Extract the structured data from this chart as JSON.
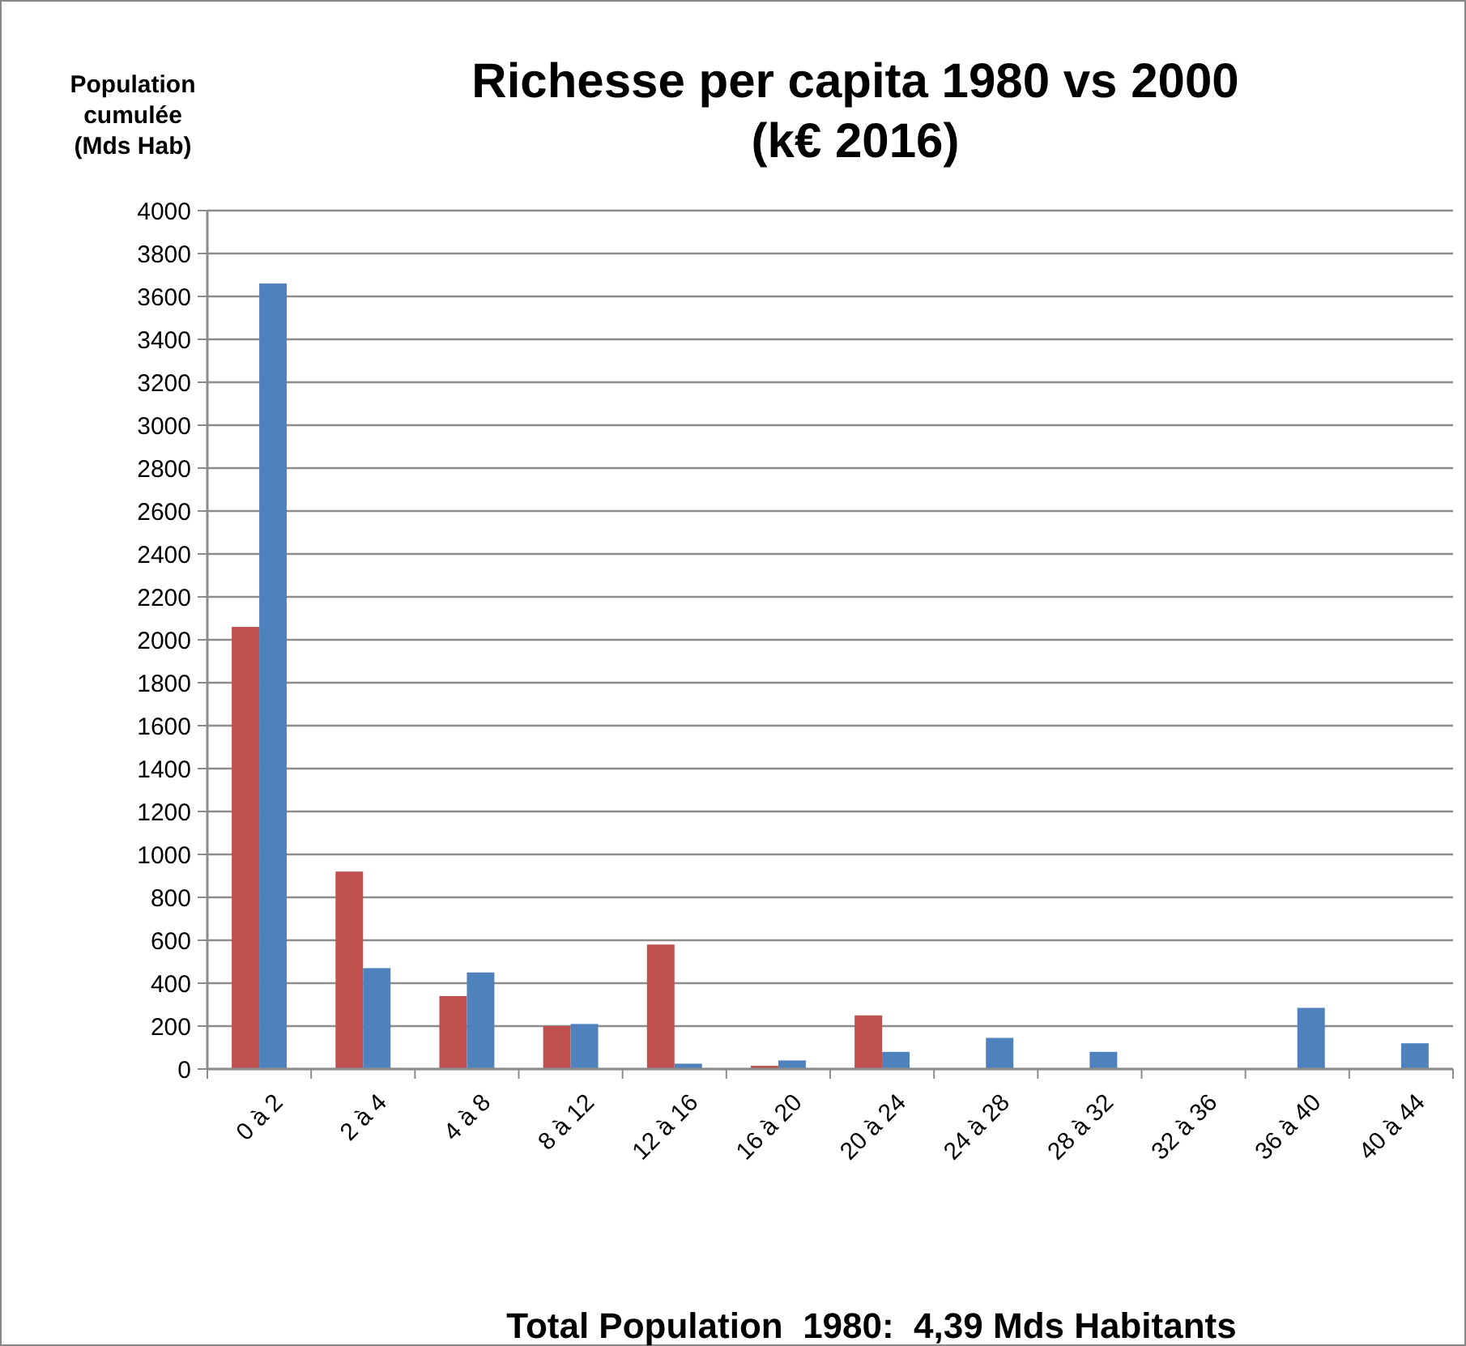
{
  "chart_data": {
    "type": "bar",
    "title": "Richesse per capita 1980 vs 2000 (k€ 2016)",
    "ylabel": "Population cumulée (Mds Hab)",
    "categories": [
      "0 à 2",
      "2 à 4",
      "4 à 8",
      "8 à 12",
      "12 à 16",
      "16 à 20",
      "20 à 24",
      "24 à 28",
      "28 à 32",
      "32 à 36",
      "36 à 40",
      "40 à 44"
    ],
    "series": [
      {
        "color": "#c0504d",
        "values": [
          2060,
          920,
          340,
          200,
          580,
          15,
          250,
          0,
          0,
          0,
          0,
          0
        ]
      },
      {
        "color": "#4f81bd",
        "values": [
          3660,
          470,
          450,
          210,
          25,
          40,
          80,
          145,
          80,
          0,
          285,
          120
        ]
      }
    ],
    "ylim": [
      0,
      4000
    ],
    "yticks": [
      0,
      200,
      400,
      600,
      800,
      1000,
      1200,
      1400,
      1600,
      1800,
      2000,
      2200,
      2400,
      2600,
      2800,
      3000,
      3200,
      3400,
      3600,
      3800,
      4000
    ],
    "grid": "y",
    "annotations": [
      "Total Population  1980:  4,39 Mds Habitants"
    ]
  }
}
